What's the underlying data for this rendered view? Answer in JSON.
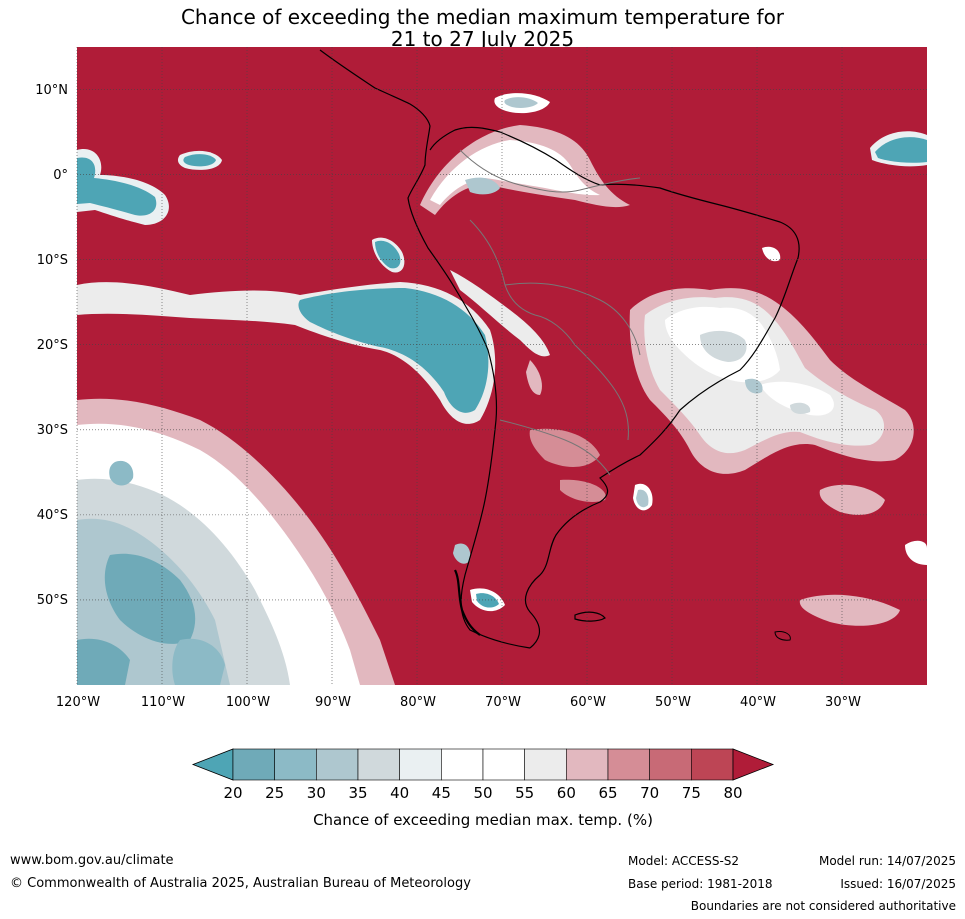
{
  "title": {
    "line1": "Chance of exceeding the median maximum temperature for",
    "line2": "21 to 27 July 2025"
  },
  "map": {
    "region": "South America and adjacent Pacific/Atlantic oceans",
    "lat_labels": [
      "10°N",
      "0°",
      "10°S",
      "20°S",
      "30°S",
      "40°S",
      "50°S"
    ],
    "lon_labels": [
      "120°W",
      "110°W",
      "100°W",
      "90°W",
      "80°W",
      "70°W",
      "60°W",
      "50°W",
      "40°W",
      "30°W"
    ],
    "lat_range": [
      -60,
      15
    ],
    "lon_range": [
      -120,
      -20
    ],
    "background_color": "#b01c38"
  },
  "colorbar": {
    "ticks": [
      "20",
      "25",
      "30",
      "35",
      "40",
      "45",
      "50",
      "55",
      "60",
      "65",
      "70",
      "75",
      "80"
    ],
    "colors": [
      "#4ea5b5",
      "#6faab8",
      "#8cbac6",
      "#aec7cf",
      "#d0d9dc",
      "#eaf0f2",
      "#ffffff",
      "#ffffff",
      "#ececec",
      "#e2b8bf",
      "#d58d96",
      "#c86a76",
      "#bd4555",
      "#b01c38"
    ],
    "label": "Chance of exceeding median max. temp. (%)"
  },
  "footer": {
    "website": "www.bom.gov.au/climate",
    "copyright": "© Commonwealth of Australia 2025, Australian Bureau of Meteorology",
    "model": "Model: ACCESS-S2",
    "base_period": "Base period: 1981-2018",
    "model_run": "Model run: 14/07/2025",
    "issued": "Issued: 16/07/2025",
    "disclaimer": "Boundaries are not considered authoritative"
  }
}
